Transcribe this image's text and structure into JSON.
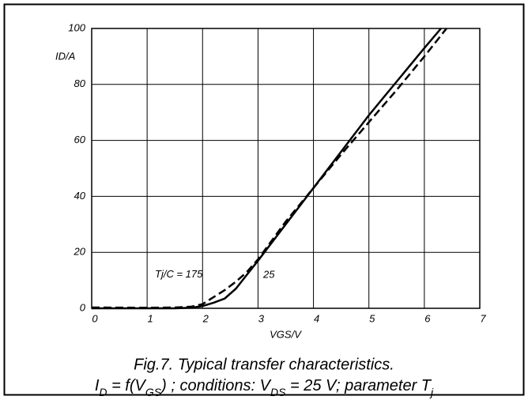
{
  "chart_data": {
    "type": "line",
    "x_label": "VGS/V",
    "y_label": "ID/A",
    "annotation": "Tj/C =",
    "series": [
      {
        "name": "175",
        "color": "#000000",
        "dashed": true,
        "x": [
          0,
          1,
          1.5,
          1.8,
          2.0,
          2.2,
          2.4,
          2.6,
          2.8,
          3.0,
          3.5,
          4.0,
          4.5,
          5.0,
          5.5,
          6.0,
          6.4
        ],
        "values": [
          0.3,
          0.2,
          0.3,
          0.6,
          1.5,
          4,
          6.5,
          9.5,
          13,
          17.5,
          31,
          43,
          55,
          66.5,
          78,
          90,
          100
        ]
      },
      {
        "name": "25",
        "color": "#000000",
        "dashed": false,
        "x": [
          0,
          1,
          1.5,
          1.8,
          2.0,
          2.2,
          2.4,
          2.6,
          2.8,
          3.0,
          3.5,
          4.0,
          4.5,
          5.0,
          5.5,
          6.0,
          6.3
        ],
        "values": [
          0,
          0,
          0,
          0.2,
          0.8,
          2,
          3.5,
          7,
          12,
          17,
          30,
          43,
          56,
          69,
          81,
          93,
          100
        ]
      }
    ],
    "xlim": [
      0,
      7
    ],
    "xticks": [
      0,
      1,
      2,
      3,
      4,
      5,
      6,
      7
    ],
    "ylim": [
      0,
      100
    ],
    "yticks": [
      0,
      20,
      40,
      60,
      80,
      100
    ],
    "grid": true,
    "caption": [
      "Fig.7.   Typical transfer characteristics.",
      [
        "I",
        "D",
        " = f(V",
        "GS",
        ") ; conditions: V",
        "DS",
        " = 25 V; parameter T",
        "j"
      ]
    ]
  }
}
